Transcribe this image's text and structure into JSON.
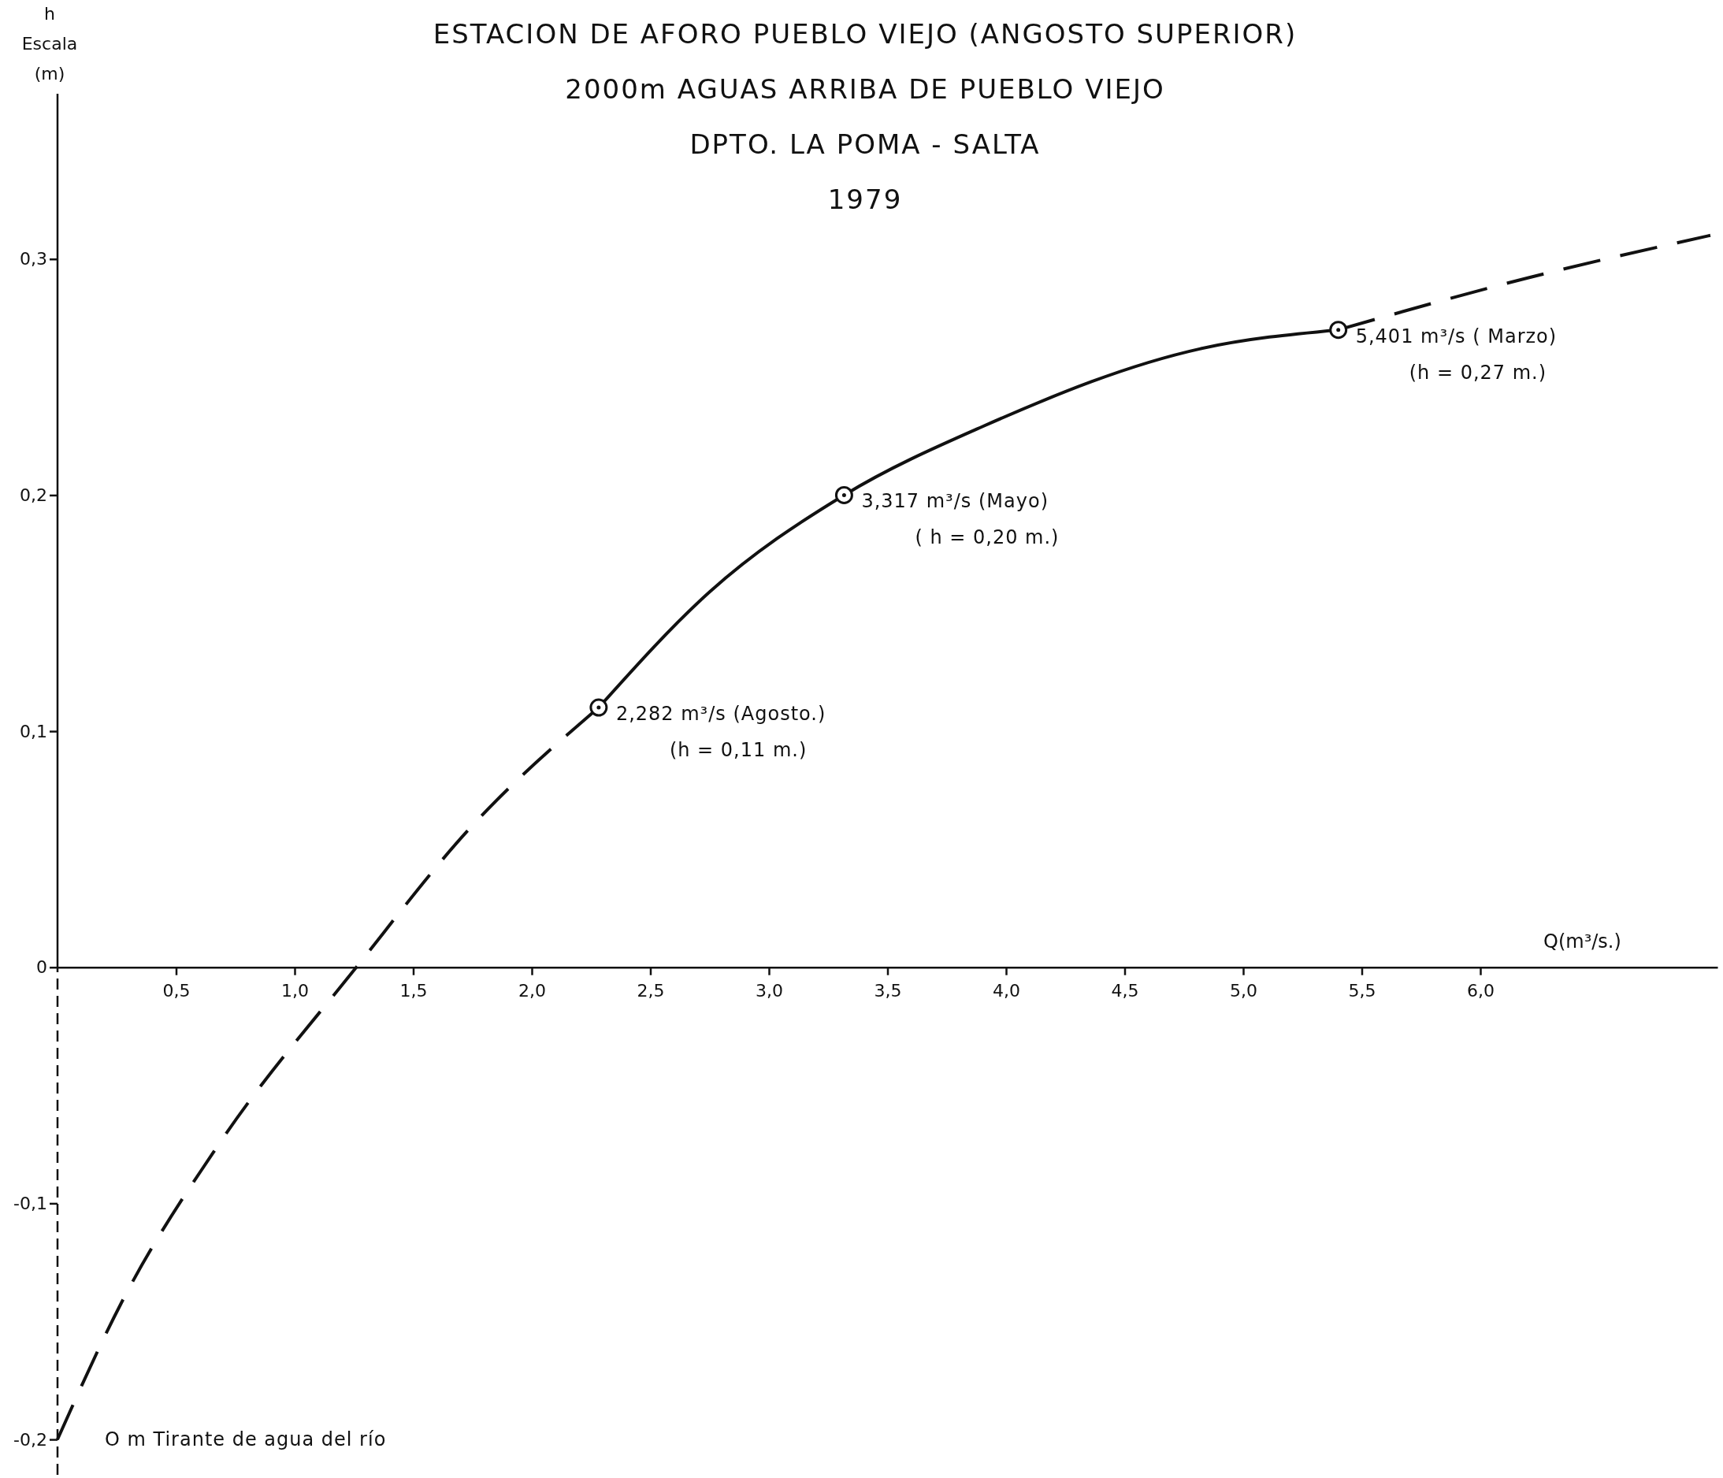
{
  "chart_data": {
    "type": "line",
    "title": "ESTACION DE AFORO  PUEBLO VIEJO (ANGOSTO SUPERIOR)",
    "subtitle": "2000m AGUAS ARRIBA DE PUEBLO VIEJO\nDPTO. LA POMA - SALTA\n1979",
    "xlabel": "Q(m³/s.)",
    "ylabel": "h\nEscala\n(m)",
    "xlim": [
      0,
      7.0
    ],
    "ylim": [
      -0.215,
      0.37
    ],
    "xticks": [
      {
        "value": 0.5,
        "label": "0,5"
      },
      {
        "value": 1.0,
        "label": "1,0"
      },
      {
        "value": 1.5,
        "label": "1,5"
      },
      {
        "value": 2.0,
        "label": "2,0"
      },
      {
        "value": 2.5,
        "label": "2,5"
      },
      {
        "value": 3.0,
        "label": "3,0"
      },
      {
        "value": 3.5,
        "label": "3,5"
      },
      {
        "value": 4.0,
        "label": "4,0"
      },
      {
        "value": 4.5,
        "label": "4,5"
      },
      {
        "value": 5.0,
        "label": "5,0"
      },
      {
        "value": 5.5,
        "label": "5,5"
      },
      {
        "value": 6.0,
        "label": "6,0"
      }
    ],
    "yticks": [
      {
        "value": -0.2,
        "label": "-0,2"
      },
      {
        "value": -0.1,
        "label": "-0,1"
      },
      0,
      {
        "value": 0.1,
        "label": "0,1"
      },
      {
        "value": 0.2,
        "label": "0,2"
      },
      {
        "value": 0.3,
        "label": "0,3"
      }
    ],
    "series": [
      {
        "line_style": "dashed",
        "color": "#111111",
        "x": [
          0,
          0.27,
          0.68,
          1.26,
          1.74,
          2.282
        ],
        "values": [
          -0.2,
          -0.142,
          -0.075,
          0,
          0.059,
          0.11
        ]
      },
      {
        "line_style": "solid",
        "color": "#111111",
        "x": [
          2.282,
          2.75,
          3.317,
          3.9,
          4.82,
          5.401
        ],
        "values": [
          0.11,
          0.159,
          0.2,
          0.229,
          0.262,
          0.27
        ]
      },
      {
        "line_style": "dashed",
        "color": "#111111",
        "x": [
          5.401,
          6.2,
          6.97
        ],
        "values": [
          0.27,
          0.292,
          0.31
        ]
      },
      {
        "type": "scatter",
        "marker": "circle",
        "color": "#111111",
        "x": [
          2.282,
          3.317,
          5.401
        ],
        "values": [
          0.11,
          0.2,
          0.27
        ]
      }
    ],
    "annotations": [
      {
        "text": "2,282 m³/s (Agosto.)\n(h = 0,11 m.)",
        "x": 2.282,
        "y": 0.11
      },
      {
        "text": "3,317 m³/s (Mayo)\n( h = 0,20 m.)",
        "x": 3.317,
        "y": 0.2
      },
      {
        "text": "5,401 m³/s ( Marzo)\n(h = 0,27 m.)",
        "x": 5.401,
        "y": 0.27
      },
      {
        "text": "O m Tirante de agua del río",
        "x": 0,
        "y": -0.2
      }
    ]
  }
}
